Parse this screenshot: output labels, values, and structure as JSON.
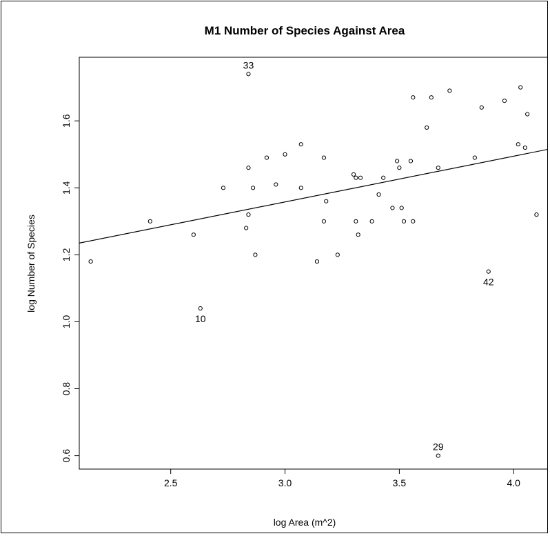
{
  "chart_data": {
    "type": "scatter",
    "title": "M1 Number of Species Against Area",
    "xlabel": "log Area (m^2)",
    "ylabel": "log Number of Species",
    "xlim": [
      2.1,
      4.15
    ],
    "ylim": [
      0.56,
      1.79
    ],
    "x_ticks": [
      2.5,
      3.0,
      3.5,
      4.0
    ],
    "x_tick_labels": [
      "2.5",
      "3.0",
      "3.5",
      "4.0"
    ],
    "y_ticks": [
      0.6,
      0.8,
      1.0,
      1.2,
      1.4,
      1.6
    ],
    "y_tick_labels": [
      "0.6",
      "0.8",
      "1.0",
      "1.2",
      "1.4",
      "1.6"
    ],
    "grid": false,
    "point_color": "#000000",
    "line_color": "#000000",
    "points": [
      {
        "x": 2.15,
        "y": 1.18
      },
      {
        "x": 2.41,
        "y": 1.3
      },
      {
        "x": 2.6,
        "y": 1.26
      },
      {
        "x": 2.63,
        "y": 1.04,
        "label": "10"
      },
      {
        "x": 2.73,
        "y": 1.4
      },
      {
        "x": 2.83,
        "y": 1.28
      },
      {
        "x": 2.84,
        "y": 1.46
      },
      {
        "x": 2.84,
        "y": 1.32
      },
      {
        "x": 2.84,
        "y": 1.74,
        "label": "33"
      },
      {
        "x": 2.86,
        "y": 1.4
      },
      {
        "x": 2.87,
        "y": 1.2
      },
      {
        "x": 2.92,
        "y": 1.49
      },
      {
        "x": 2.96,
        "y": 1.41
      },
      {
        "x": 3.0,
        "y": 1.5
      },
      {
        "x": 3.07,
        "y": 1.53
      },
      {
        "x": 3.07,
        "y": 1.4
      },
      {
        "x": 3.14,
        "y": 1.18
      },
      {
        "x": 3.17,
        "y": 1.49
      },
      {
        "x": 3.17,
        "y": 1.3
      },
      {
        "x": 3.18,
        "y": 1.36
      },
      {
        "x": 3.23,
        "y": 1.2
      },
      {
        "x": 3.3,
        "y": 1.44
      },
      {
        "x": 3.31,
        "y": 1.43
      },
      {
        "x": 3.31,
        "y": 1.3
      },
      {
        "x": 3.32,
        "y": 1.26
      },
      {
        "x": 3.33,
        "y": 1.43
      },
      {
        "x": 3.38,
        "y": 1.3
      },
      {
        "x": 3.41,
        "y": 1.38
      },
      {
        "x": 3.43,
        "y": 1.43
      },
      {
        "x": 3.47,
        "y": 1.34
      },
      {
        "x": 3.49,
        "y": 1.48
      },
      {
        "x": 3.5,
        "y": 1.46
      },
      {
        "x": 3.51,
        "y": 1.34
      },
      {
        "x": 3.52,
        "y": 1.3
      },
      {
        "x": 3.55,
        "y": 1.48
      },
      {
        "x": 3.56,
        "y": 1.67
      },
      {
        "x": 3.56,
        "y": 1.3
      },
      {
        "x": 3.62,
        "y": 1.58
      },
      {
        "x": 3.64,
        "y": 1.67
      },
      {
        "x": 3.67,
        "y": 1.46
      },
      {
        "x": 3.67,
        "y": 0.6,
        "label": "29"
      },
      {
        "x": 3.72,
        "y": 1.69
      },
      {
        "x": 3.83,
        "y": 1.49
      },
      {
        "x": 3.86,
        "y": 1.64
      },
      {
        "x": 3.89,
        "y": 1.15,
        "label": "42"
      },
      {
        "x": 3.96,
        "y": 1.66
      },
      {
        "x": 4.02,
        "y": 1.53
      },
      {
        "x": 4.03,
        "y": 1.7
      },
      {
        "x": 4.05,
        "y": 1.52
      },
      {
        "x": 4.06,
        "y": 1.62
      },
      {
        "x": 4.1,
        "y": 1.32
      }
    ],
    "regression_line": {
      "x": [
        2.1,
        4.15
      ],
      "y": [
        1.235,
        1.515
      ]
    }
  }
}
